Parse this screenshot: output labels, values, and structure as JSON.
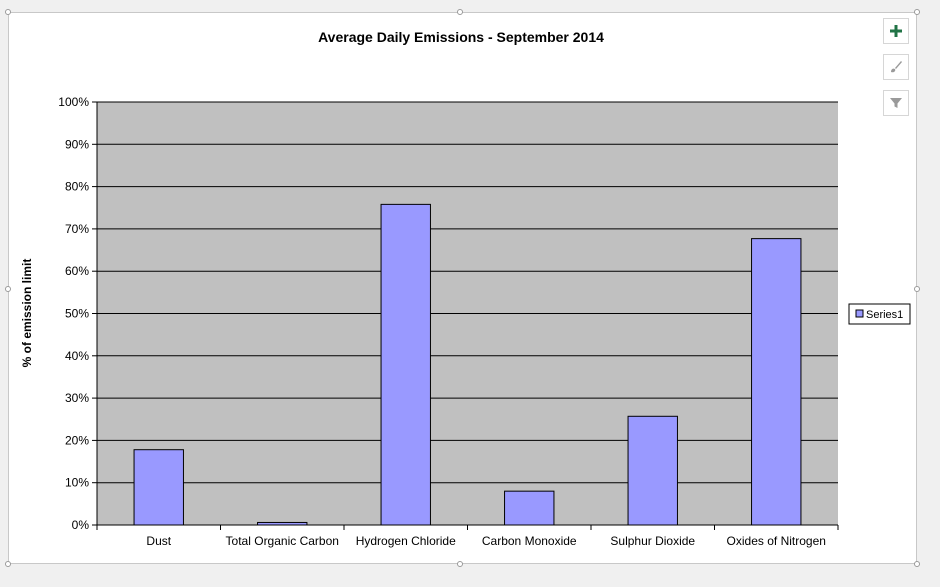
{
  "chart_data": {
    "type": "bar",
    "title": "Average Daily Emissions - September 2014",
    "xlabel": "",
    "ylabel": "% of emission limit",
    "categories": [
      "Dust",
      "Total Organic Carbon",
      "Hydrogen Chloride",
      "Carbon Monoxide",
      "Sulphur Dioxide",
      "Oxides of Nitrogen"
    ],
    "series": [
      {
        "name": "Series1",
        "values": [
          17.8,
          0.6,
          75.8,
          8.0,
          25.7,
          67.7
        ],
        "color": "#9999ff"
      }
    ],
    "ylim": [
      0,
      100
    ],
    "yticks": [
      "0%",
      "10%",
      "20%",
      "30%",
      "40%",
      "50%",
      "60%",
      "70%",
      "80%",
      "90%",
      "100%"
    ],
    "grid": true,
    "plot_background": "#c0c0c0",
    "legend_position": "right"
  },
  "side_buttons": [
    {
      "icon": "plus-icon",
      "color": "#217346"
    },
    {
      "icon": "brush-icon",
      "color": "#9a9a9a"
    },
    {
      "icon": "filter-icon",
      "color": "#9a9a9a"
    }
  ]
}
